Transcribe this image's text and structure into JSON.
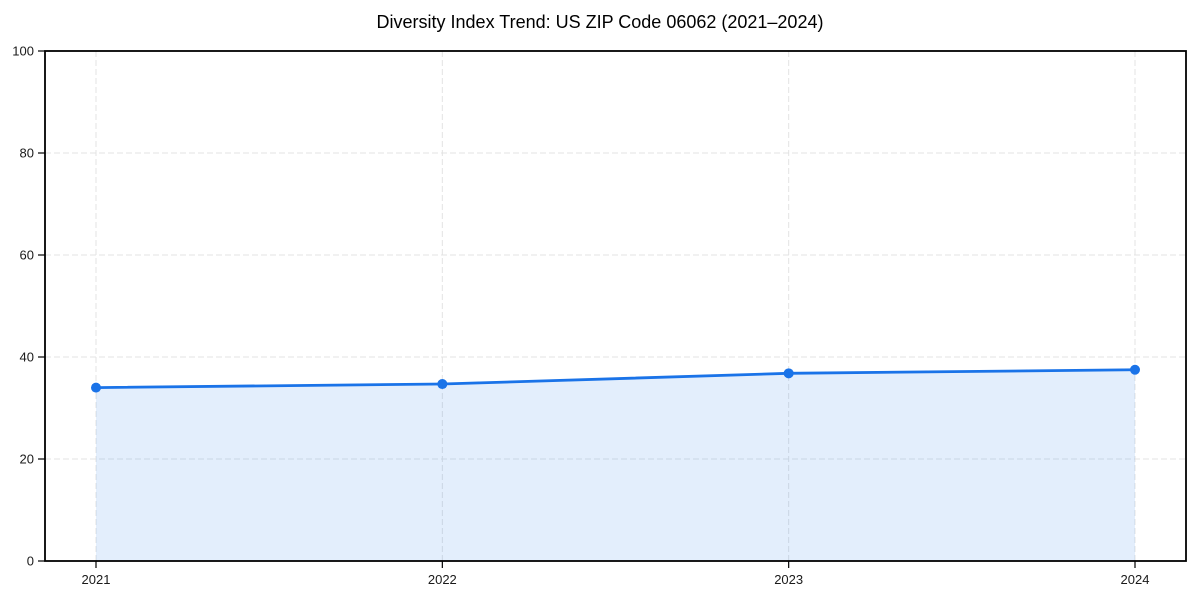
{
  "chart_data": {
    "type": "line",
    "title": "Diversity Index Trend: US ZIP Code 06062 (2021–2024)",
    "x": [
      "2021",
      "2022",
      "2023",
      "2024"
    ],
    "series": [
      {
        "name": "Diversity Index",
        "values": [
          34.0,
          34.7,
          36.8,
          37.5
        ]
      }
    ],
    "xlabel": "",
    "ylabel": "",
    "ylim": [
      0,
      100
    ],
    "yticks": [
      0,
      20,
      40,
      60,
      80,
      100
    ],
    "grid": "dashed-both-axes",
    "legend": "none",
    "area_fill_under_line": true,
    "marker": "circle",
    "marker_size": 5,
    "line_width": 2.8,
    "colors": {
      "line": "#1a73e8",
      "fill": "#1a73e8",
      "fill_opacity": 0.12,
      "grid": "#e3e3e3",
      "axis": "#000000",
      "tick_label": "#1a1a1a",
      "title": "#000000",
      "background": "#ffffff"
    }
  }
}
